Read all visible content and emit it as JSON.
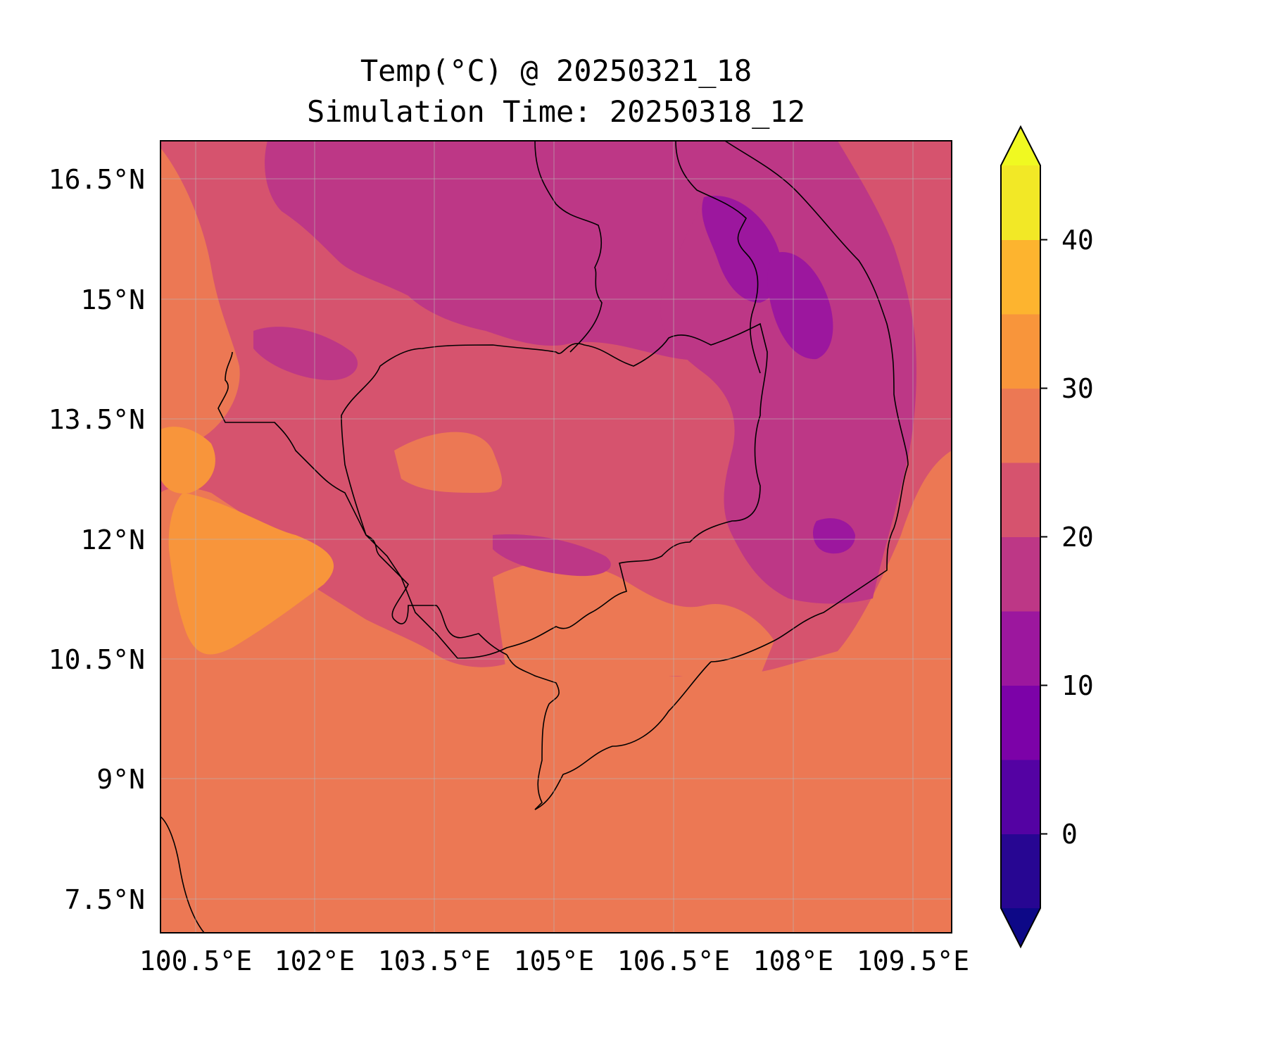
{
  "title": "Temp(°C) @ 20250321_18",
  "subtitle": "Simulation Time: 20250318_12",
  "map": {
    "extent": {
      "lon": [
        100.2,
        109.9
      ],
      "lat": [
        7.1,
        17.0
      ]
    },
    "lat_ticks": [
      "16.5°N",
      "15°N",
      "13.5°N",
      "12°N",
      "10.5°N",
      "9°N",
      "7.5°N"
    ],
    "lon_ticks": [
      "100.5°E",
      "102°E",
      "103.5°E",
      "105°E",
      "106.5°E",
      "108°E",
      "109.5°E"
    ],
    "gridlines": true,
    "coastlines": true,
    "country_borders": true
  },
  "colorbar": {
    "colormap": "plasma",
    "levels": [
      -5,
      0,
      5,
      10,
      15,
      20,
      25,
      30,
      35,
      40,
      45
    ],
    "tick_labels": [
      "0",
      "10",
      "20",
      "30",
      "40"
    ],
    "extend": "both",
    "colors": [
      "#0d0887",
      "#240691",
      "#41049d",
      "#5c01a6",
      "#7e03a8",
      "#9a179b",
      "#b52f8c",
      "#cc4778",
      "#e16462",
      "#f2844b",
      "#fca636",
      "#f0f921"
    ],
    "bin_colors": [
      "#270692",
      "#5402a3",
      "#7c02a8",
      "#9c179e",
      "#bd3786",
      "#d6536e",
      "#ec7854",
      "#f8953b",
      "#fdb42f",
      "#f2e826"
    ]
  }
}
